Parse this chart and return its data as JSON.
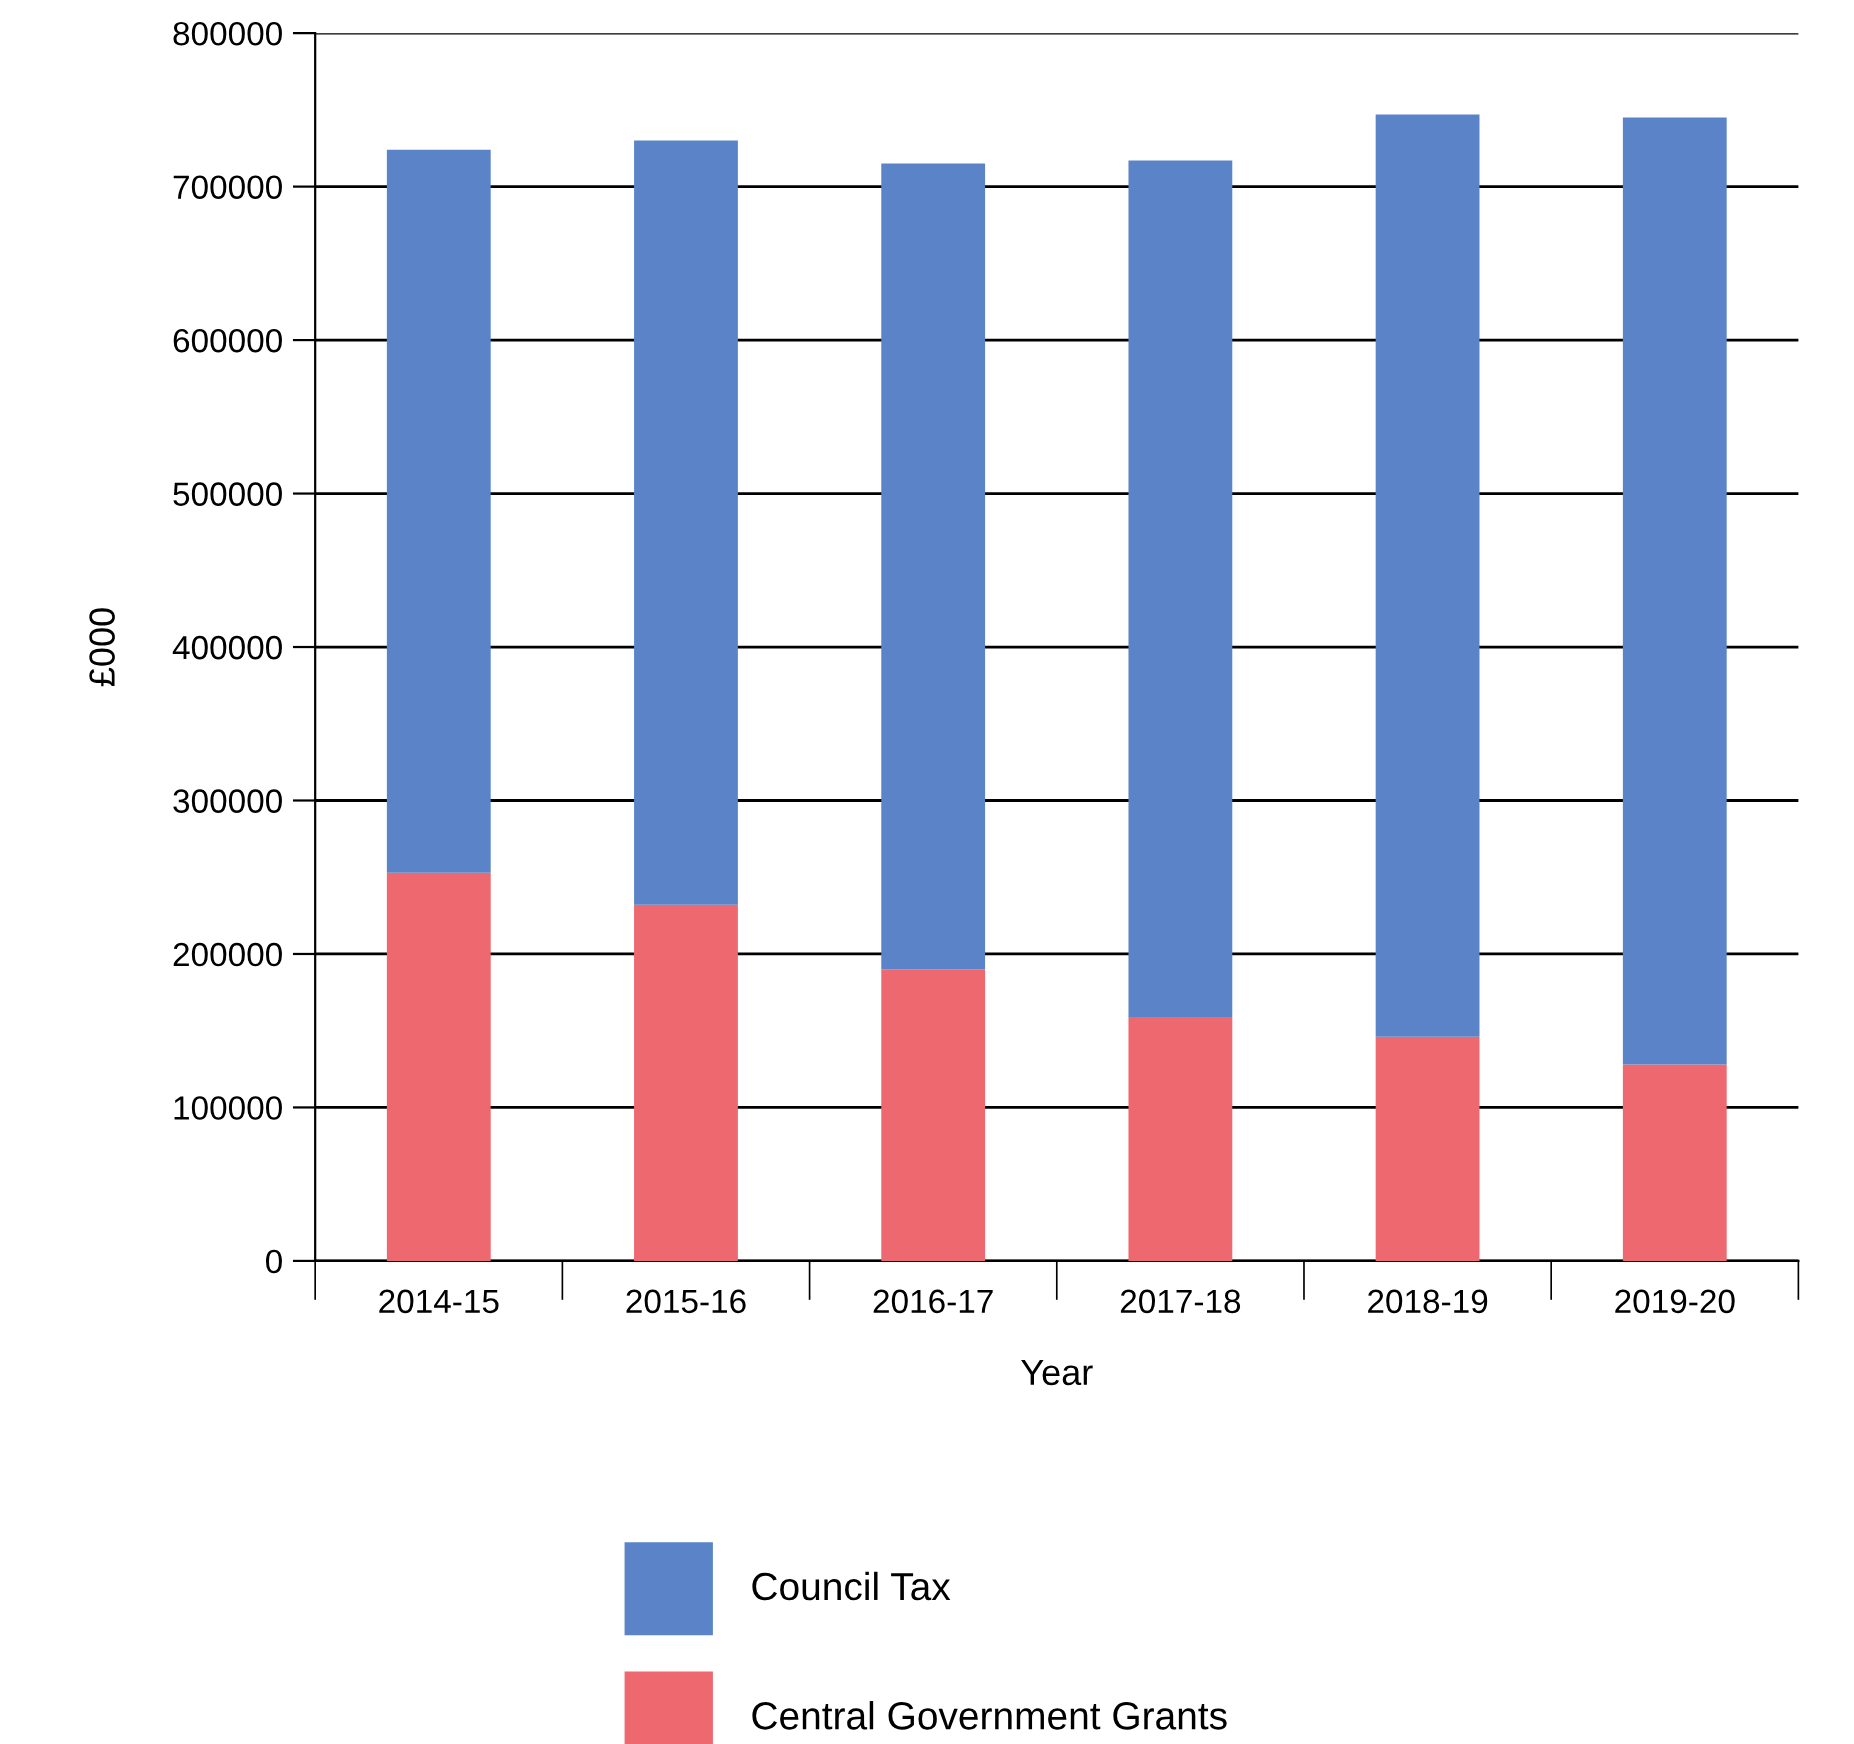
{
  "chart_data": {
    "type": "bar",
    "stacked": true,
    "xlabel": "Year",
    "ylabel": "£000",
    "categories": [
      "2014-15",
      "2015-16",
      "2016-17",
      "2017-18",
      "2018-19",
      "2019-20"
    ],
    "series": [
      {
        "name": "Central Government Grants",
        "color": "#ee6870",
        "values": [
          253000,
          232000,
          190000,
          159000,
          146000,
          128000
        ]
      },
      {
        "name": "Council Tax",
        "color": "#5b84c8",
        "values": [
          471000,
          498000,
          525000,
          558000,
          601000,
          617000
        ]
      }
    ],
    "ylim": [
      0,
      800000
    ],
    "yticks": [
      0,
      100000,
      200000,
      300000,
      400000,
      500000,
      600000,
      700000,
      800000
    ],
    "grid": "y",
    "legend": "bottom"
  }
}
